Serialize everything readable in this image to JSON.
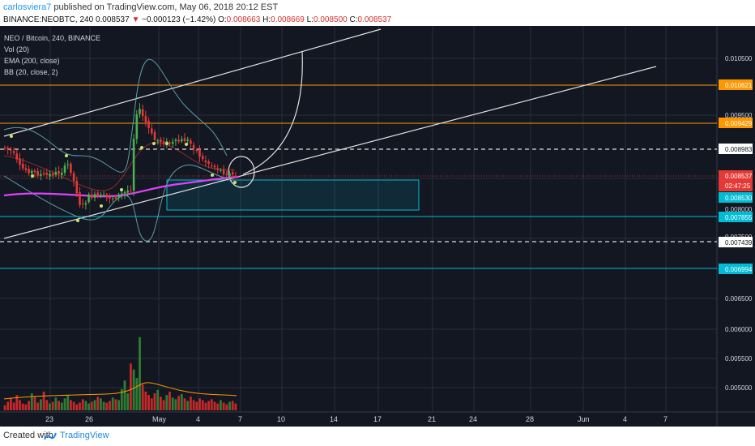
{
  "header": {
    "user": "carlosviera7",
    "published": "published on TradingView.com, May 06, 2018 20:12 EST"
  },
  "ticker": {
    "symbol": "BINANCE:NEOBTC, 240",
    "price": "0.008537",
    "change_arrow": "▼",
    "change": "−0.000123 (−1.42%)",
    "o_label": "O:",
    "o": "0.008663",
    "h_label": "H:",
    "h": "0.008669",
    "l_label": "L:",
    "l": "0.008500",
    "c_label": "C:",
    "c": "0.008537"
  },
  "legend": {
    "pair": "NEO / Bitcoin, 240, BINANCE",
    "vol": "Vol (20)",
    "ema": "EMA (200, close)",
    "bb": "BB (20, close, 2)"
  },
  "colors": {
    "background": "#131722",
    "up": "#26a69a",
    "up_candle": "#4caf50",
    "down": "#e53935",
    "ema": "#e040fb",
    "bb": "#5b9ea6",
    "orange_level": "#ff9800",
    "cyan_level": "#00bcd4",
    "white_line": "#e0e0e0"
  },
  "price_axis": {
    "ticks": [
      "0.010500",
      "0.009500",
      "0.008000",
      "0.007500",
      "0.006500",
      "0.006000",
      "0.005500",
      "0.005000"
    ],
    "labels": [
      {
        "text": "0.010621",
        "style": "orange"
      },
      {
        "text": "0.009429",
        "style": "orange"
      },
      {
        "text": "0.008983",
        "style": "white"
      },
      {
        "text": "0.008537",
        "style": "red"
      },
      {
        "text": "02:47:25",
        "style": "red"
      },
      {
        "text": "0.008530",
        "style": "cyan"
      },
      {
        "text": "0.007855",
        "style": "cyan"
      },
      {
        "text": "0.007439",
        "style": "white"
      },
      {
        "text": "0.006994",
        "style": "cyan"
      }
    ]
  },
  "time_axis": {
    "ticks": [
      "23",
      "26",
      "May",
      "4",
      "7",
      "10",
      "14",
      "17",
      "21",
      "24",
      "28",
      "Jun",
      "4",
      "7"
    ]
  },
  "footer": {
    "created": "Created with",
    "brand": "TradingView"
  }
}
